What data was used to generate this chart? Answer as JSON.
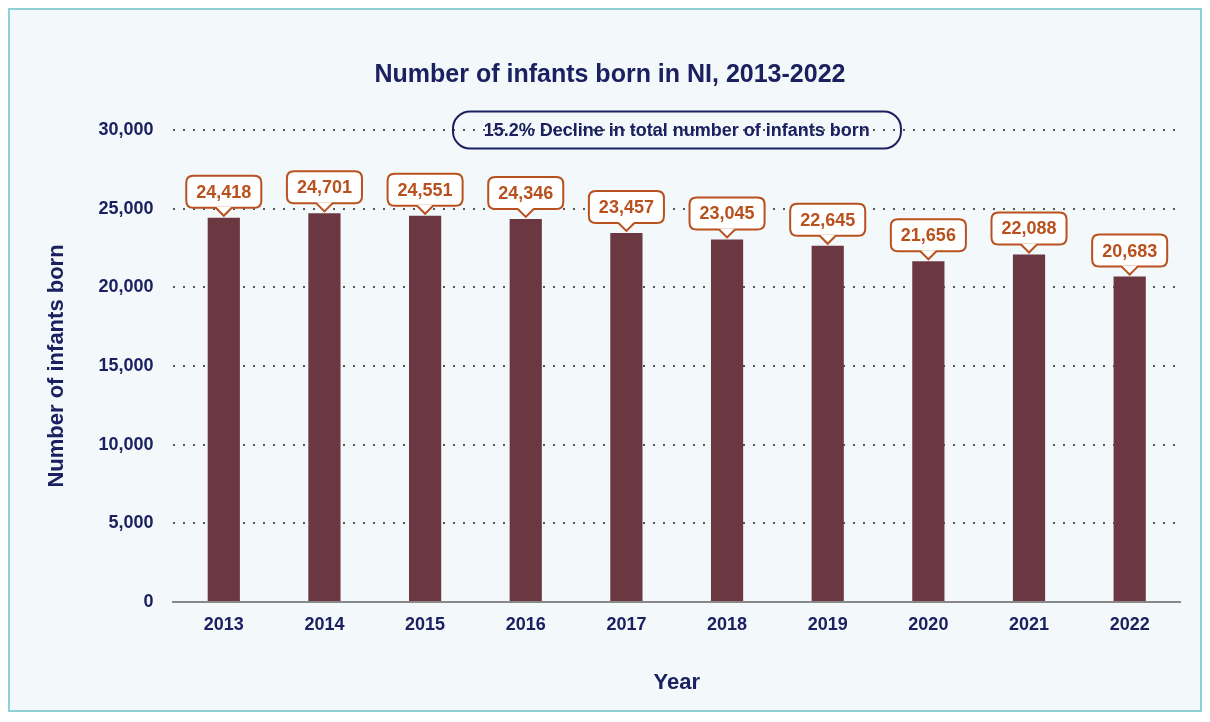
{
  "chart_data": {
    "type": "bar",
    "title": "Number of infants born in NI, 2013-2022",
    "xlabel": "Year",
    "ylabel": "Number of infants born",
    "categories": [
      "2013",
      "2014",
      "2015",
      "2016",
      "2017",
      "2018",
      "2019",
      "2020",
      "2021",
      "2022"
    ],
    "values": [
      24418,
      24701,
      24551,
      24346,
      23457,
      23045,
      22645,
      21656,
      22088,
      20683
    ],
    "color": "#6b3842",
    "value_labels": [
      "24,418",
      "24,701",
      "24,551",
      "24,346",
      "23,457",
      "23,045",
      "22,645",
      "21,656",
      "22,088",
      "20,683"
    ],
    "ylim": [
      0,
      30000
    ],
    "yticks": [
      {
        "value": 0,
        "label": "0"
      },
      {
        "value": 5000,
        "label": "5,000"
      },
      {
        "value": 10000,
        "label": "10,000"
      },
      {
        "value": 15000,
        "label": "15,000"
      },
      {
        "value": 20000,
        "label": "20,000"
      },
      {
        "value": 25000,
        "label": "25,000"
      },
      {
        "value": 30000,
        "label": "30,000"
      }
    ],
    "grid": "y",
    "legend": false,
    "annotations": [
      "15.2% Decline in total number of infants born"
    ]
  }
}
